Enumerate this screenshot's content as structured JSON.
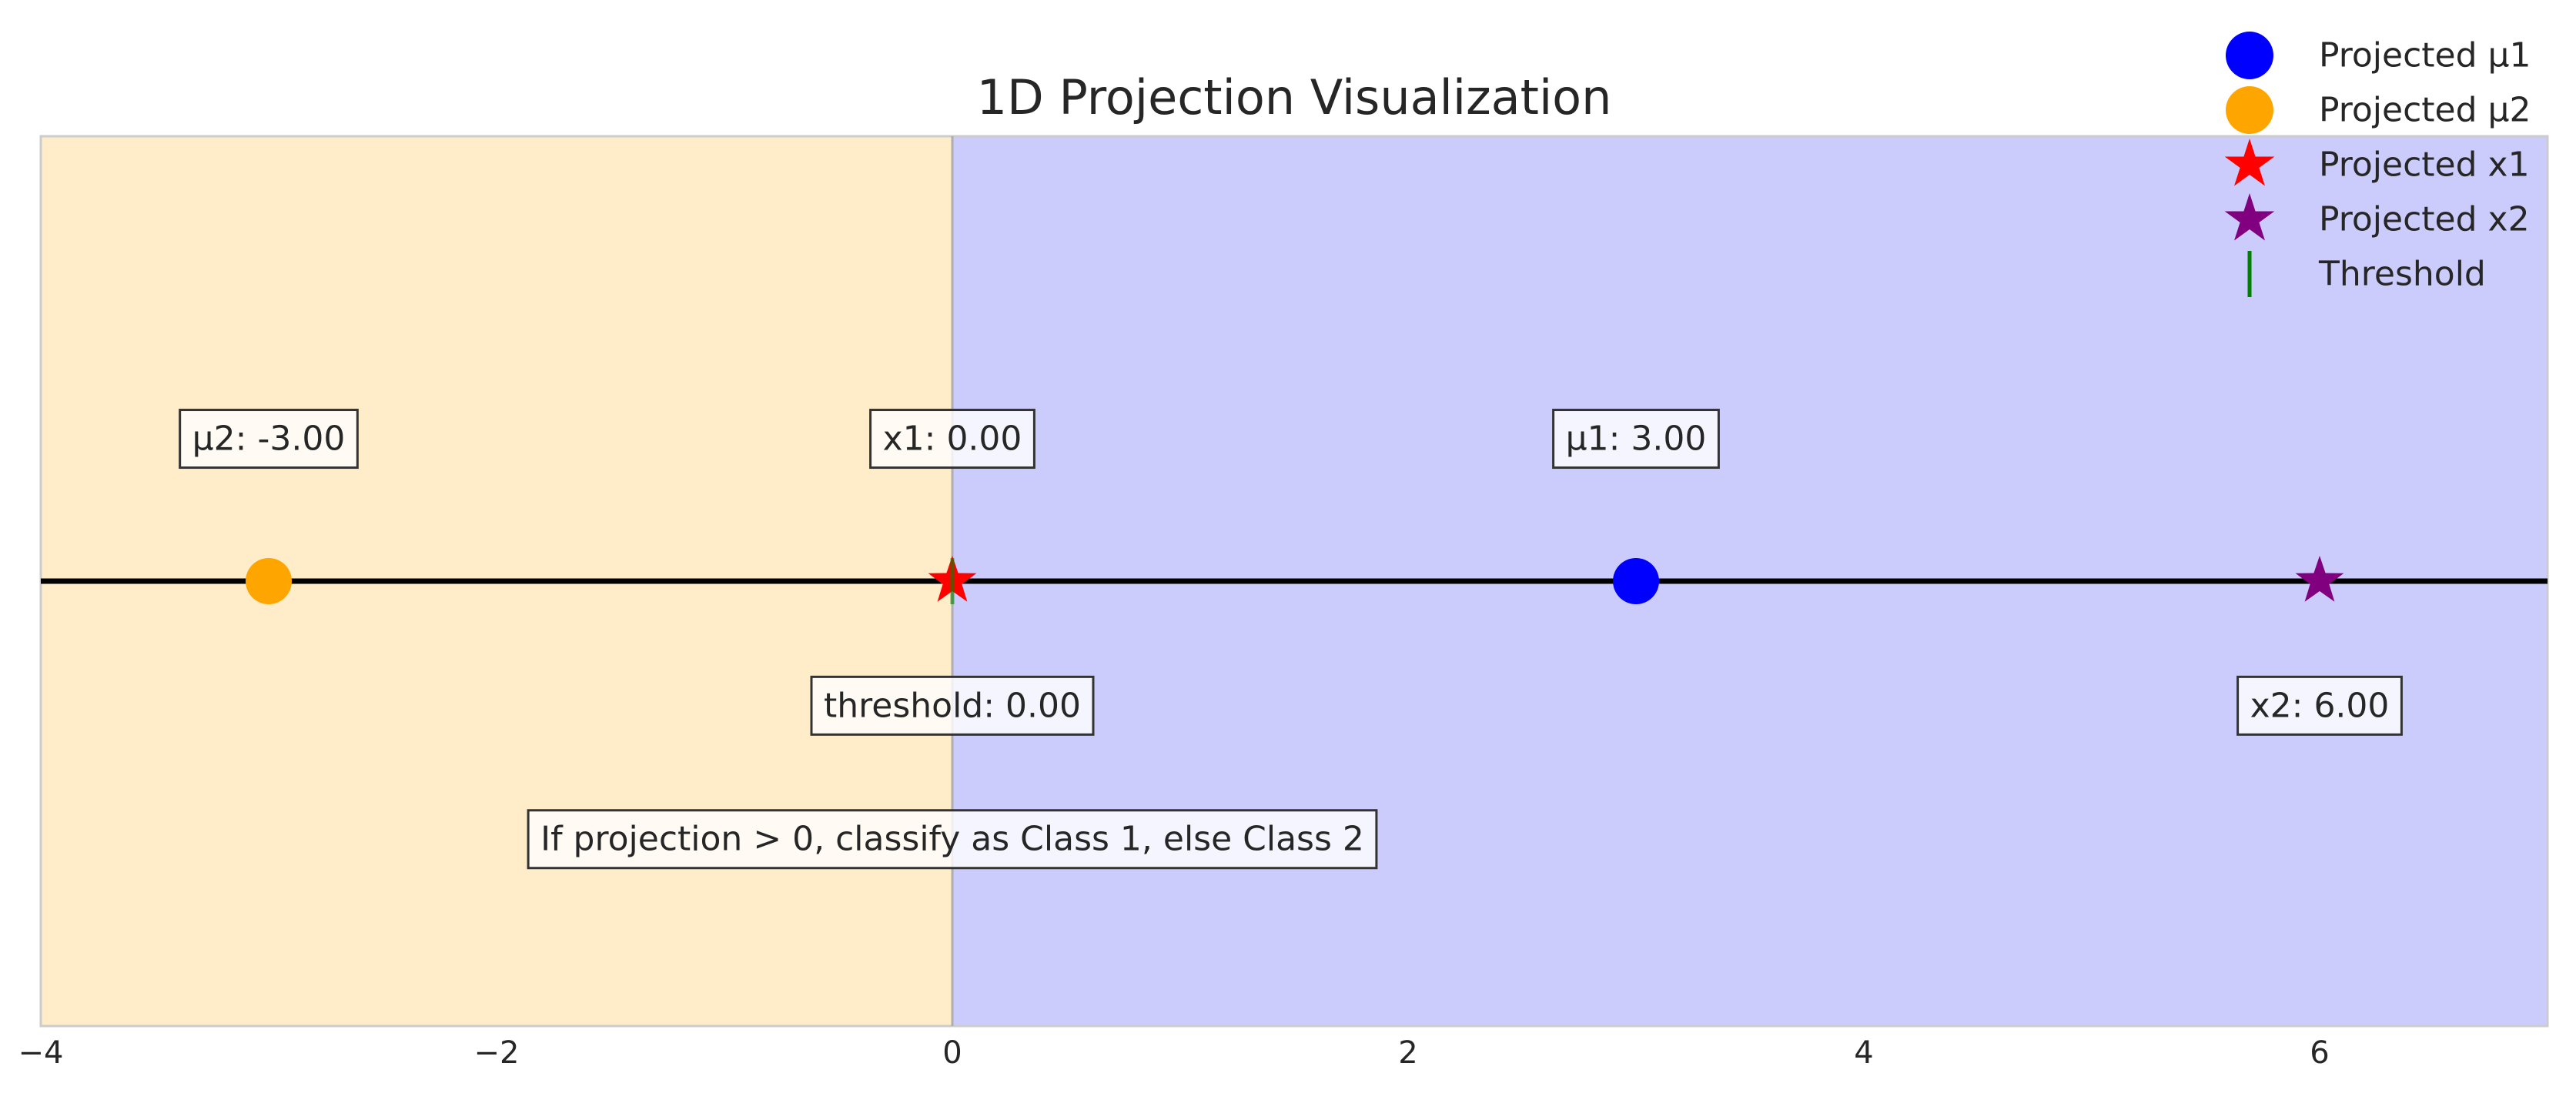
{
  "chart_data": {
    "type": "scatter",
    "title": "1D Projection Visualization",
    "xlabel": "",
    "ylabel": "",
    "xlim": [
      -4,
      7
    ],
    "ylim": [
      -1,
      1
    ],
    "xticks": [
      -4,
      -2,
      0,
      2,
      4,
      6
    ],
    "xtick_labels": [
      "−4",
      "−2",
      "0",
      "2",
      "4",
      "6"
    ],
    "grid": false,
    "legend_position": "top-right",
    "regions": [
      {
        "x_from": -4,
        "x_to": 0,
        "color": "#ffecc9"
      },
      {
        "x_from": 0,
        "x_to": 7,
        "color": "#ccccfc"
      }
    ],
    "projection_line": {
      "y": 0,
      "color": "#000000"
    },
    "series": [
      {
        "name": "Projected μ1",
        "marker": "circle",
        "color": "#0000ff",
        "x": [
          3
        ],
        "y": [
          0
        ]
      },
      {
        "name": "Projected μ2",
        "marker": "circle",
        "color": "#ffa500",
        "x": [
          -3
        ],
        "y": [
          0
        ]
      },
      {
        "name": "Projected x1",
        "marker": "star",
        "color": "#ff0000",
        "x": [
          0
        ],
        "y": [
          0
        ]
      },
      {
        "name": "Projected x2",
        "marker": "star",
        "color": "#800080",
        "x": [
          6
        ],
        "y": [
          0
        ]
      },
      {
        "name": "Threshold",
        "marker": "vline",
        "color": "#008000",
        "x": [
          0
        ],
        "y": [
          0
        ]
      }
    ],
    "annotations": [
      {
        "text": "μ2: -3.00",
        "x": -3,
        "y": 0.32
      },
      {
        "text": "x1: 0.00",
        "x": 0,
        "y": 0.32
      },
      {
        "text": "μ1: 3.00",
        "x": 3,
        "y": 0.32
      },
      {
        "text": "threshold: 0.00",
        "x": 0,
        "y": -0.28
      },
      {
        "text": "x2: 6.00",
        "x": 6,
        "y": -0.28
      },
      {
        "text": "If projection > 0, classify as Class 1, else Class 2",
        "x": 0,
        "y": -0.58
      }
    ]
  }
}
